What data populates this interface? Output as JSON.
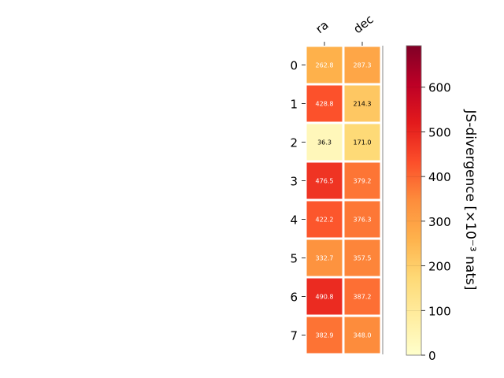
{
  "chart_data": {
    "type": "heatmap",
    "columns": [
      "ra",
      "dec"
    ],
    "rows": [
      "0",
      "1",
      "2",
      "3",
      "4",
      "5",
      "6",
      "7"
    ],
    "values": [
      [
        262.8,
        287.3
      ],
      [
        428.8,
        214.3
      ],
      [
        36.3,
        171.0
      ],
      [
        476.5,
        379.2
      ],
      [
        422.2,
        376.3
      ],
      [
        332.7,
        357.5
      ],
      [
        490.8,
        387.2
      ],
      [
        382.9,
        348.0
      ]
    ],
    "value_labels": [
      [
        "262.8",
        "287.3"
      ],
      [
        "428.8",
        "214.3"
      ],
      [
        "36.3",
        "171.0"
      ],
      [
        "476.5",
        "379.2"
      ],
      [
        "422.2",
        "376.3"
      ],
      [
        "332.7",
        "357.5"
      ],
      [
        "490.8",
        "387.2"
      ],
      [
        "382.9",
        "348.0"
      ]
    ],
    "colorbar": {
      "label": "JS-divergence [×10⁻³ nats]",
      "range": [
        0,
        693
      ],
      "ticks": [
        0,
        100,
        200,
        300,
        400,
        500,
        600
      ],
      "colormap": "YlOrRd",
      "colors": [
        "#ffffcc",
        "#ffeda0",
        "#fed976",
        "#feb24c",
        "#fd8d3c",
        "#fc4e2a",
        "#e31a1c",
        "#bd0026",
        "#800026"
      ]
    }
  }
}
